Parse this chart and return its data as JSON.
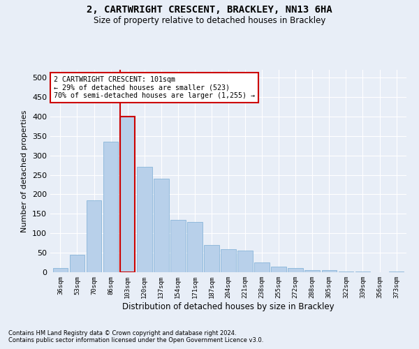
{
  "title": "2, CARTWRIGHT CRESCENT, BRACKLEY, NN13 6HA",
  "subtitle": "Size of property relative to detached houses in Brackley",
  "xlabel": "Distribution of detached houses by size in Brackley",
  "ylabel": "Number of detached properties",
  "categories": [
    "36sqm",
    "53sqm",
    "70sqm",
    "86sqm",
    "103sqm",
    "120sqm",
    "137sqm",
    "154sqm",
    "171sqm",
    "187sqm",
    "204sqm",
    "221sqm",
    "238sqm",
    "255sqm",
    "272sqm",
    "288sqm",
    "305sqm",
    "322sqm",
    "339sqm",
    "356sqm",
    "373sqm"
  ],
  "values": [
    10,
    45,
    185,
    335,
    400,
    270,
    240,
    135,
    130,
    70,
    60,
    55,
    25,
    15,
    10,
    5,
    5,
    2,
    1,
    0,
    2
  ],
  "bar_color": "#b8d0ea",
  "bar_edge_color": "#7aadd4",
  "highlight_index": 4,
  "highlight_line_color": "#cc0000",
  "ylim": [
    0,
    520
  ],
  "yticks": [
    0,
    50,
    100,
    150,
    200,
    250,
    300,
    350,
    400,
    450,
    500
  ],
  "annotation_box_text": "2 CARTWRIGHT CRESCENT: 101sqm\n← 29% of detached houses are smaller (523)\n70% of semi-detached houses are larger (1,255) →",
  "annotation_box_color": "#cc0000",
  "annotation_box_fill": "#ffffff",
  "footnote1": "Contains HM Land Registry data © Crown copyright and database right 2024.",
  "footnote2": "Contains public sector information licensed under the Open Government Licence v3.0.",
  "bg_color": "#e8eef7",
  "plot_bg_color": "#e8eef7",
  "grid_color": "#ffffff"
}
